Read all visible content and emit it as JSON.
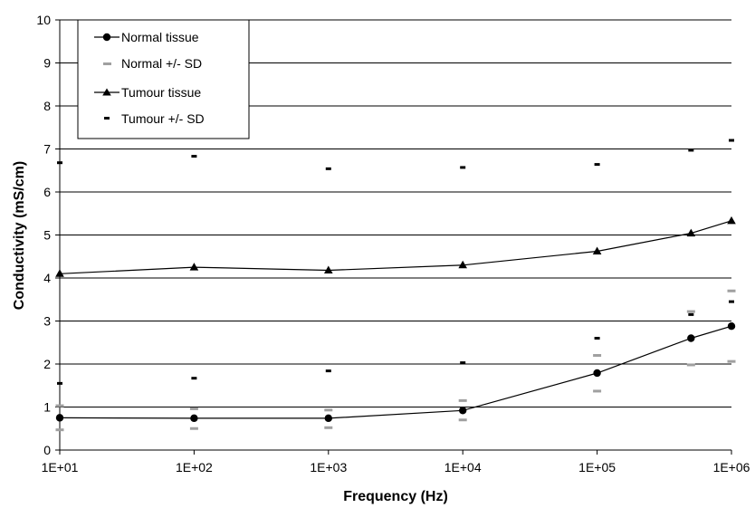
{
  "chart_data": {
    "type": "line",
    "title": "",
    "xlabel": "Frequency (Hz)",
    "ylabel": "Conductivity (mS/cm)",
    "x_scale": "log",
    "xlim": [
      10,
      1000000
    ],
    "ylim": [
      0,
      10
    ],
    "grid": "horizontal",
    "legend_position": "top-left",
    "x_tick_labels": [
      "1E+01",
      "1E+02",
      "1E+03",
      "1E+04",
      "1E+05",
      "1E+06"
    ],
    "y_tick_labels": [
      "0",
      "1",
      "2",
      "3",
      "4",
      "5",
      "6",
      "7",
      "8",
      "9",
      "10"
    ],
    "series": [
      {
        "name": "Normal tissue",
        "style": "line-circle",
        "color": "#000000",
        "x": [
          10,
          100,
          1000,
          10000,
          100000,
          500000,
          1000000
        ],
        "values": [
          0.75,
          0.74,
          0.74,
          0.92,
          1.79,
          2.6,
          2.88
        ]
      },
      {
        "name": "Normal +/- SD",
        "style": "dash",
        "color": "#a0a0a0",
        "x": [
          10,
          10,
          100,
          100,
          1000,
          1000,
          10000,
          10000,
          100000,
          100000,
          500000,
          500000,
          1000000,
          1000000
        ],
        "values": [
          1.03,
          0.47,
          0.96,
          0.5,
          0.93,
          0.52,
          1.15,
          0.7,
          2.2,
          1.37,
          3.22,
          1.98,
          3.7,
          2.06
        ]
      },
      {
        "name": "Tumour tissue",
        "style": "line-triangle",
        "color": "#000000",
        "x": [
          10,
          100,
          1000,
          10000,
          100000,
          500000,
          1000000
        ],
        "values": [
          4.1,
          4.25,
          4.18,
          4.3,
          4.62,
          5.04,
          5.33
        ]
      },
      {
        "name": "Tumour +/- SD",
        "style": "dash",
        "color": "#000000",
        "x": [
          10,
          10,
          100,
          100,
          1000,
          1000,
          10000,
          10000,
          100000,
          100000,
          500000,
          500000,
          1000000,
          1000000
        ],
        "values": [
          6.68,
          1.55,
          6.83,
          1.67,
          6.54,
          1.84,
          6.57,
          2.03,
          6.64,
          2.6,
          6.97,
          3.15,
          7.2,
          3.45
        ]
      }
    ]
  }
}
